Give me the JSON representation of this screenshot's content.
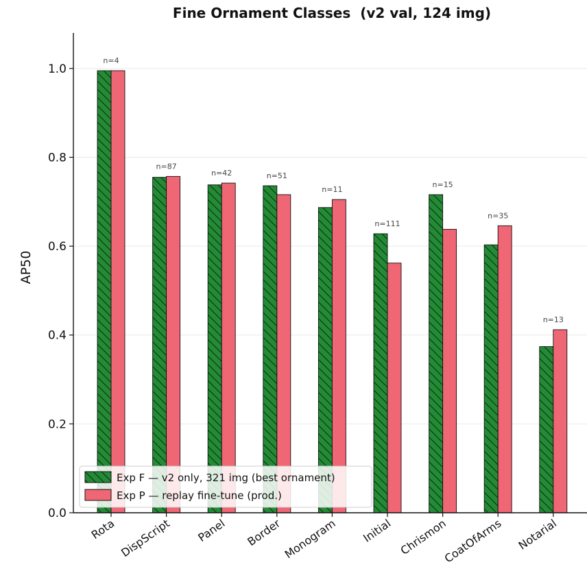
{
  "chart_data": {
    "type": "bar",
    "title": "Fine Ornament Classes  (v2 val, 124 img)",
    "xlabel": "",
    "ylabel": "AP50",
    "ylim": [
      0.0,
      1.08
    ],
    "yticks": [
      "0.0",
      "0.2",
      "0.4",
      "0.6",
      "0.8",
      "1.0"
    ],
    "grid": "horizontal",
    "legend_position": "lower-left",
    "categories": [
      "Rota",
      "DispScript",
      "Panel",
      "Border",
      "Monogram",
      "Initial",
      "Chrismon",
      "CoatOfArms",
      "Notarial"
    ],
    "counts": [
      "n=4",
      "n=87",
      "n=42",
      "n=51",
      "n=11",
      "n=111",
      "n=15",
      "n=35",
      "n=13"
    ],
    "series": [
      {
        "name": "Exp F — v2 only, 321 img (best ornament)",
        "color": "#238b35",
        "hatch": "diagonal",
        "values": [
          0.995,
          0.755,
          0.738,
          0.736,
          0.687,
          0.628,
          0.716,
          0.603,
          0.374
        ]
      },
      {
        "name": "Exp P — replay fine-tune (prod.)",
        "color": "#ef6675",
        "hatch": "none",
        "values": [
          0.995,
          0.757,
          0.742,
          0.716,
          0.705,
          0.562,
          0.638,
          0.646,
          0.412
        ]
      }
    ]
  }
}
